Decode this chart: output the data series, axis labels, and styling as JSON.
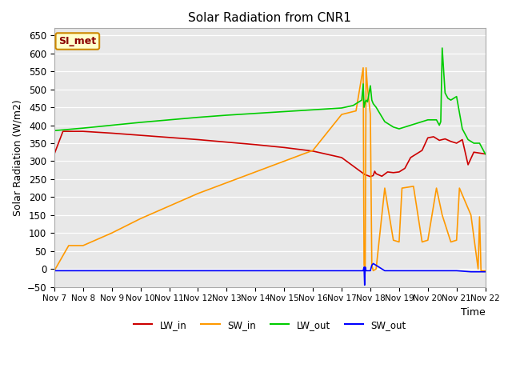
{
  "title": "Solar Radiation from CNR1",
  "xlabel": "Time",
  "ylabel": "Solar Radiation (W/m2)",
  "ylim": [
    -50,
    670
  ],
  "plot_bg_color": "#e8e8e8",
  "label_box": "SI_met",
  "tick_labels": [
    "Nov 7",
    "Nov 8",
    "Nov 9",
    "Nov 10",
    "Nov 11",
    "Nov 12",
    "Nov 13",
    "Nov 14",
    "Nov 15",
    "Nov 16",
    "Nov 17",
    "Nov 18",
    "Nov 19",
    "Nov 20",
    "Nov 21",
    "Nov 22"
  ],
  "series": {
    "LW_in": {
      "color": "#cc0000",
      "x": [
        0,
        0.3,
        1,
        2,
        3,
        4,
        5,
        6,
        7,
        8,
        9,
        10,
        10.8,
        11.0,
        11.1,
        11.15,
        11.2,
        11.4,
        11.6,
        11.8,
        12,
        12.2,
        12.4,
        12.6,
        12.8,
        13,
        13.2,
        13.4,
        13.6,
        13.8,
        14,
        14.2,
        14.4,
        14.6,
        15
      ],
      "y": [
        320,
        383,
        383,
        378,
        372,
        366,
        360,
        353,
        346,
        338,
        328,
        310,
        263,
        257,
        260,
        272,
        265,
        258,
        270,
        268,
        270,
        280,
        310,
        320,
        330,
        365,
        368,
        358,
        362,
        355,
        350,
        360,
        290,
        325,
        320
      ]
    },
    "SW_in": {
      "color": "#ff9900",
      "x": [
        0,
        0.5,
        1,
        2,
        3,
        4,
        5,
        6,
        7,
        8,
        9,
        10,
        10.5,
        10.75,
        10.78,
        10.82,
        10.85,
        10.9,
        11.0,
        11.05,
        11.1,
        11.2,
        11.5,
        11.8,
        12.0,
        12.1,
        12.5,
        12.8,
        13,
        13.3,
        13.5,
        13.8,
        14.0,
        14.1,
        14.5,
        14.75,
        14.8,
        14.85,
        15
      ],
      "y": [
        -5,
        65,
        65,
        100,
        140,
        175,
        210,
        240,
        270,
        300,
        330,
        430,
        440,
        560,
        10,
        5,
        560,
        505,
        430,
        10,
        -5,
        0,
        225,
        80,
        75,
        225,
        230,
        75,
        80,
        225,
        150,
        75,
        80,
        225,
        150,
        0,
        145,
        -5,
        -5
      ]
    },
    "LW_out": {
      "color": "#00cc00",
      "x": [
        0,
        1,
        2,
        3,
        4,
        5,
        6,
        7,
        8,
        9,
        10,
        10.4,
        10.7,
        10.75,
        10.78,
        10.82,
        10.85,
        10.9,
        11.0,
        11.05,
        11.1,
        11.2,
        11.5,
        11.8,
        12.0,
        12.2,
        12.4,
        12.6,
        12.8,
        13.0,
        13.2,
        13.3,
        13.4,
        13.45,
        13.5,
        13.6,
        13.7,
        13.8,
        14.0,
        14.2,
        14.4,
        14.6,
        14.8,
        15
      ],
      "y": [
        385,
        392,
        400,
        408,
        415,
        422,
        428,
        433,
        438,
        443,
        448,
        455,
        470,
        515,
        450,
        465,
        470,
        465,
        510,
        470,
        460,
        450,
        410,
        395,
        390,
        395,
        400,
        405,
        410,
        415,
        415,
        415,
        400,
        410,
        615,
        490,
        475,
        470,
        480,
        390,
        360,
        350,
        350,
        320
      ]
    },
    "SW_out": {
      "color": "#0000ff",
      "x": [
        0,
        8,
        9,
        10,
        10.5,
        10.7,
        10.75,
        10.78,
        10.8,
        10.82,
        10.85,
        10.9,
        11.0,
        11.05,
        11.1,
        11.2,
        11.5,
        11.8,
        12.0,
        12.5,
        13,
        13.5,
        14,
        14.5,
        15
      ],
      "y": [
        -5,
        -5,
        -5,
        -5,
        -5,
        -5,
        -5,
        5,
        -45,
        5,
        -5,
        -5,
        -5,
        10,
        15,
        10,
        -5,
        -5,
        -5,
        -5,
        -5,
        -5,
        -5,
        -8,
        -8
      ]
    }
  },
  "legend_names": [
    "LW_in",
    "SW_in",
    "LW_out",
    "SW_out"
  ],
  "legend_colors": [
    "#cc0000",
    "#ff9900",
    "#00cc00",
    "#0000ff"
  ],
  "yticks": [
    -50,
    0,
    50,
    100,
    150,
    200,
    250,
    300,
    350,
    400,
    450,
    500,
    550,
    600,
    650
  ]
}
